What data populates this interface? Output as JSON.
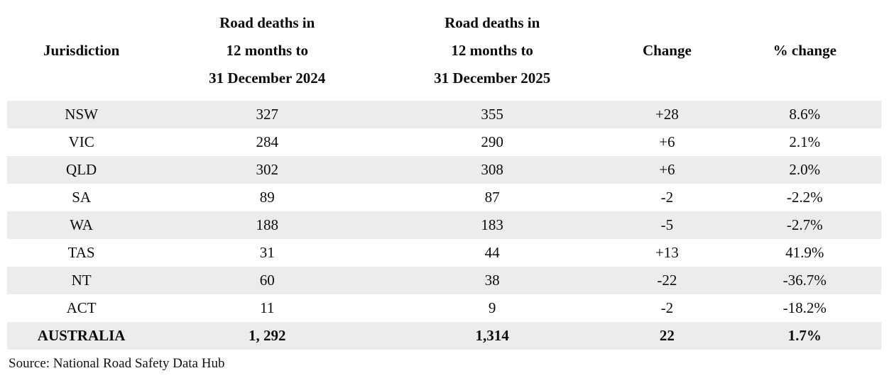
{
  "chart_data": {
    "type": "table",
    "columns": [
      "Jurisdiction",
      "Road deaths in 12 months to 31 December 2024",
      "Road deaths in 12 months to 31 December 2025",
      "Change",
      "% change"
    ],
    "rows": [
      {
        "jurisdiction": "NSW",
        "deaths_2024": "327",
        "deaths_2025": "355",
        "change": "+28",
        "pct_change": "8.6%"
      },
      {
        "jurisdiction": "VIC",
        "deaths_2024": "284",
        "deaths_2025": "290",
        "change": "+6",
        "pct_change": "2.1%"
      },
      {
        "jurisdiction": "QLD",
        "deaths_2024": "302",
        "deaths_2025": "308",
        "change": "+6",
        "pct_change": "2.0%"
      },
      {
        "jurisdiction": "SA",
        "deaths_2024": "89",
        "deaths_2025": "87",
        "change": "-2",
        "pct_change": "-2.2%"
      },
      {
        "jurisdiction": "WA",
        "deaths_2024": "188",
        "deaths_2025": "183",
        "change": "-5",
        "pct_change": "-2.7%"
      },
      {
        "jurisdiction": "TAS",
        "deaths_2024": "31",
        "deaths_2025": "44",
        "change": "+13",
        "pct_change": "41.9%"
      },
      {
        "jurisdiction": "NT",
        "deaths_2024": "60",
        "deaths_2025": "38",
        "change": "-22",
        "pct_change": "-36.7%"
      },
      {
        "jurisdiction": "ACT",
        "deaths_2024": "11",
        "deaths_2025": "9",
        "change": "-2",
        "pct_change": "-18.2%"
      },
      {
        "jurisdiction": "AUSTRALIA",
        "deaths_2024": "1, 292",
        "deaths_2025": "1,314",
        "change": "22",
        "pct_change": "1.7%"
      }
    ],
    "layout": {
      "striped_rows": "odd rows shaded starting at NSW",
      "stripe_color": "#ececec",
      "total_row_bold": true
    }
  },
  "table": {
    "header": {
      "jurisdiction": "Jurisdiction",
      "deaths_2024_lines": [
        "Road deaths in",
        "12 months to",
        "31 December 2024"
      ],
      "deaths_2025_lines": [
        "Road deaths in",
        "12 months to",
        "31 December 2025"
      ],
      "change": "Change",
      "pct_change": "% change"
    }
  },
  "footer": {
    "source": "Source: National Road Safety Data Hub"
  }
}
